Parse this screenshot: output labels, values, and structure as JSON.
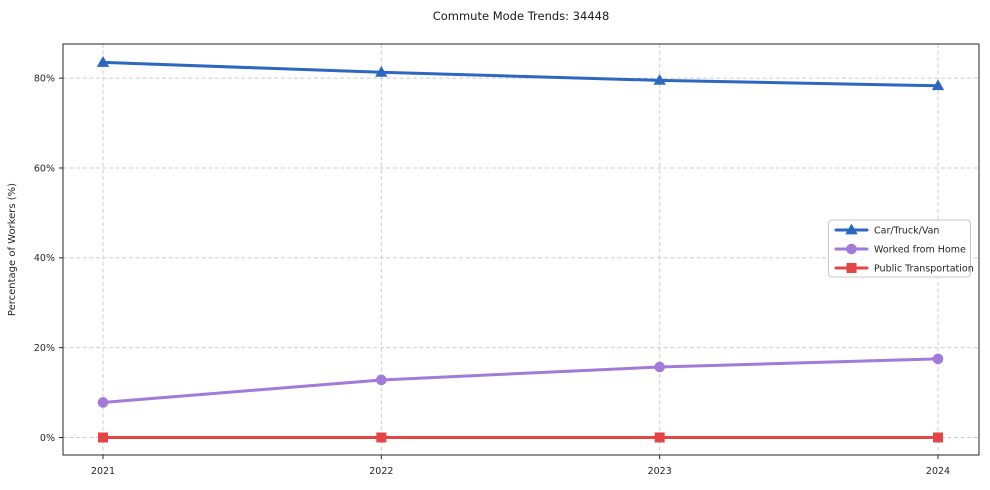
{
  "chart_data": {
    "type": "line",
    "title": "Commute Mode Trends: 34448",
    "xlabel": "",
    "ylabel": "Percentage of Workers (%)",
    "categories": [
      "2021",
      "2022",
      "2023",
      "2024"
    ],
    "series": [
      {
        "name": "Car/Truck/Van",
        "values": [
          83.5,
          81.3,
          79.5,
          78.3
        ],
        "color": "#2c68c0",
        "marker": "triangle-up"
      },
      {
        "name": "Worked from Home",
        "values": [
          7.8,
          12.8,
          15.7,
          17.5
        ],
        "color": "#a27ad8",
        "marker": "circle"
      },
      {
        "name": "Public Transportation",
        "values": [
          0.0,
          0.0,
          0.0,
          0.0
        ],
        "color": "#e44545",
        "marker": "square"
      }
    ],
    "y_ticks": {
      "values": [
        0,
        20,
        40,
        60,
        80
      ],
      "labels": [
        "0%",
        "20%",
        "40%",
        "60%",
        "80%"
      ]
    },
    "ylim": [
      -3.9,
      87.6
    ],
    "grid": "dashed",
    "grid_color": "#cccccc",
    "axes_border_color": "#262626",
    "legend_position": "center-right",
    "legend_border_color": "#c9c9c9",
    "legend_background": "#ffffff"
  }
}
